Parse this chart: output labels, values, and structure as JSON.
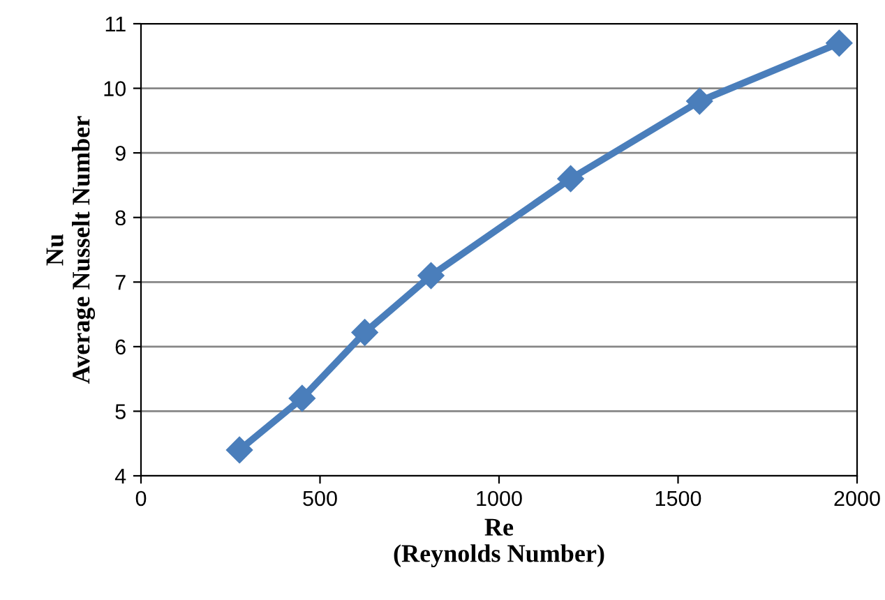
{
  "chart_data": {
    "type": "line",
    "xlabel": "Re\n(Reynolds Number)",
    "ylabel": "Nu\nAverage Nusselt Number",
    "x": [
      275,
      450,
      625,
      810,
      1200,
      1560,
      1950
    ],
    "series": [
      {
        "color": "#4a7ebb",
        "values": [
          4.4,
          5.2,
          6.22,
          7.1,
          8.6,
          9.8,
          10.7
        ]
      }
    ],
    "xlim": [
      0,
      2000
    ],
    "xticks": [
      0,
      500,
      1000,
      1500,
      2000
    ],
    "ylim": [
      4,
      11
    ],
    "yticks": [
      4,
      5,
      6,
      7,
      8,
      9,
      10,
      11
    ],
    "grid": "y",
    "marker": "diamond",
    "line_style": "solid",
    "legend": false
  }
}
